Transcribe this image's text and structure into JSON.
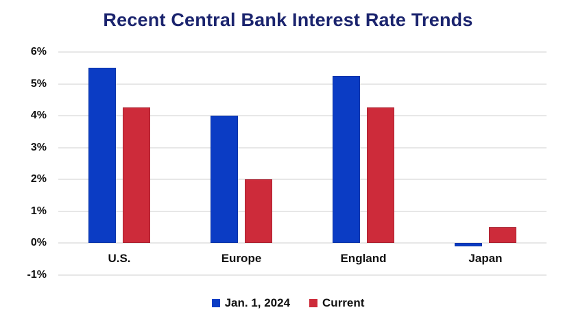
{
  "chart_data": {
    "type": "bar",
    "title": "Recent Central Bank Interest Rate Trends",
    "categories": [
      "U.S.",
      "Europe",
      "England",
      "Japan"
    ],
    "series": [
      {
        "name": "Jan. 1, 2024",
        "values": [
          5.5,
          4.0,
          5.25,
          -0.1
        ],
        "color": "#0b3cc4",
        "border_color": "#0a34a8"
      },
      {
        "name": "Current",
        "values": [
          4.25,
          2.0,
          4.25,
          0.5
        ],
        "color": "#cd2b3a",
        "border_color": "#aa2130"
      }
    ],
    "xlabel": "",
    "ylabel": "",
    "ytick_labels": [
      "6%",
      "5%",
      "4%",
      "3%",
      "2%",
      "1%",
      "0%",
      "-1%"
    ],
    "ytick_values": [
      6,
      5,
      4,
      3,
      2,
      1,
      0,
      -1
    ],
    "ylim": [
      -1,
      6
    ],
    "grid": "horizontal-only",
    "legend_position": "bottom-center",
    "title_color": "#1b246e",
    "axis_text_color": "#111111",
    "gridline_color": "#e7e7e7",
    "background_color": "#ffffff"
  }
}
